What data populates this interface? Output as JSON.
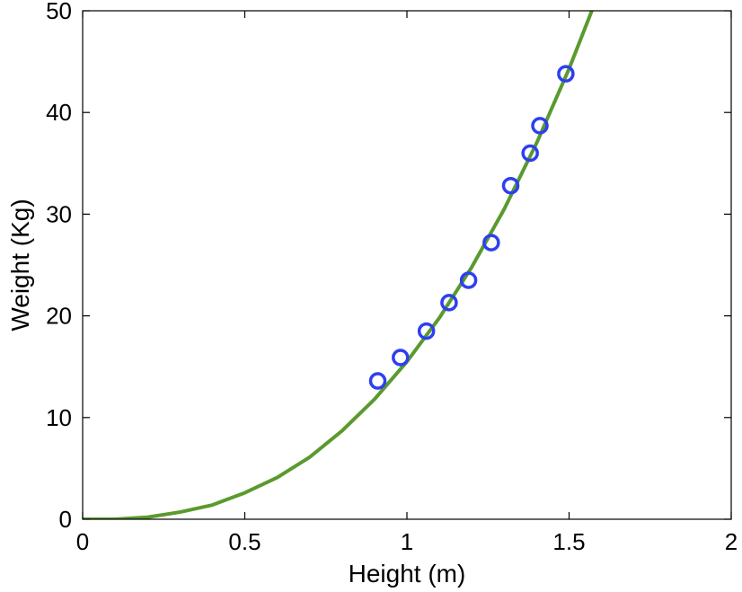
{
  "chart_data": {
    "type": "scatter",
    "xlabel": "Height (m)",
    "ylabel": "Weight (Kg)",
    "xlim": [
      0,
      2
    ],
    "ylim": [
      0,
      50
    ],
    "xticks": [
      "0",
      "0.5",
      "1",
      "1.5",
      "2"
    ],
    "yticks": [
      "0",
      "10",
      "20",
      "30",
      "40",
      "50"
    ],
    "grid": false,
    "series": [
      {
        "kind": "scatter",
        "marker": "circle-open",
        "color": "#2e3ff0",
        "x": [
          0.91,
          0.98,
          1.06,
          1.13,
          1.19,
          1.26,
          1.32,
          1.38,
          1.41,
          1.49
        ],
        "y": [
          13.6,
          15.9,
          18.5,
          21.3,
          23.5,
          27.2,
          32.8,
          36.0,
          38.7,
          43.8
        ]
      },
      {
        "kind": "line",
        "color": "#5a9a2e",
        "x": [
          0,
          0.1,
          0.2,
          0.3,
          0.4,
          0.5,
          0.6,
          0.7,
          0.8,
          0.9,
          1.0,
          1.1,
          1.2,
          1.3,
          1.4,
          1.5,
          1.58
        ],
        "y": [
          0,
          0.0,
          0.2,
          0.7,
          1.4,
          2.6,
          4.1,
          6.1,
          8.7,
          11.8,
          15.5,
          19.8,
          24.8,
          30.5,
          37.0,
          44.3,
          50.8
        ]
      }
    ]
  }
}
